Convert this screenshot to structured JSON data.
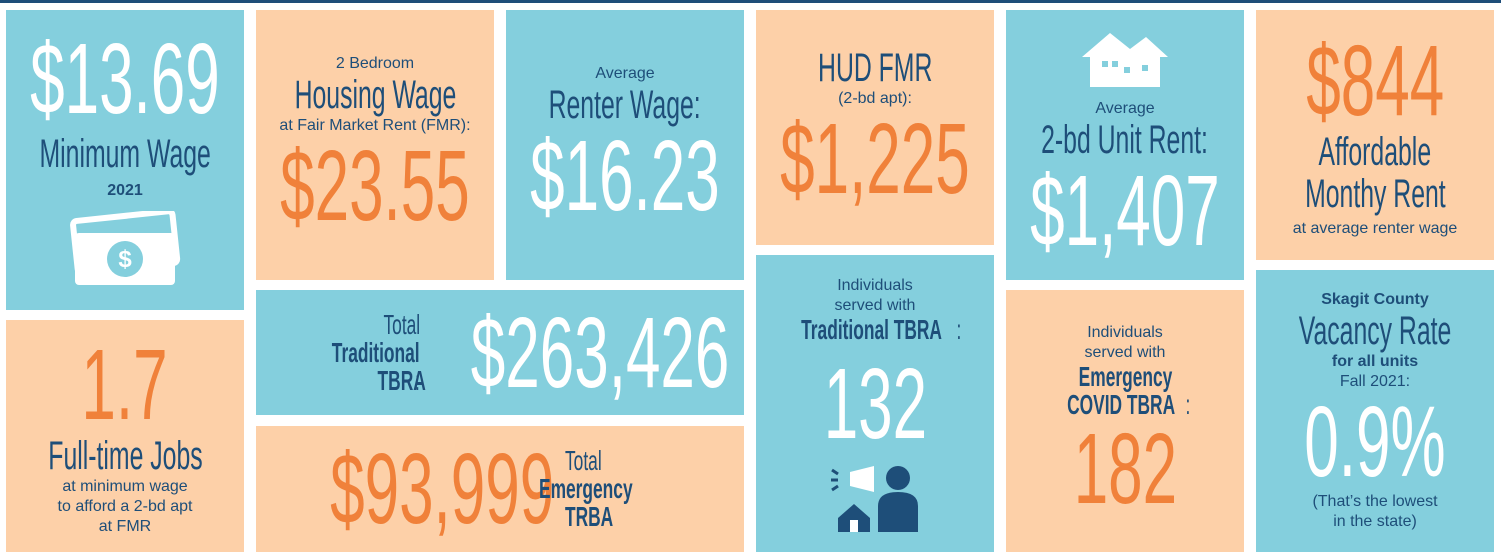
{
  "minimum_wage": {
    "value": "$13.69",
    "label": "Minimum Wage",
    "year": "2021"
  },
  "jobs": {
    "value": "1.7",
    "label": "Full-time Jobs",
    "note": [
      "at minimum wage",
      "to afford a 2-bd apt",
      "at FMR"
    ]
  },
  "housing_wage": {
    "pre": "2 Bedroom",
    "label": "Housing Wage",
    "note": "at Fair Market Rent (FMR):",
    "value": "$23.55"
  },
  "renter_wage": {
    "pre": "Average",
    "label": "Renter Wage:",
    "value": "$16.23"
  },
  "traditional_total": {
    "parts": [
      "Total",
      "Traditional",
      "TBRA",
      ":"
    ],
    "value": "$263,426"
  },
  "emergency_total": {
    "value": "$93,999",
    "parts": [
      "Total",
      "Emergency",
      "TRBA"
    ]
  },
  "hud_fmr": {
    "label": "HUD FMR",
    "note": "(2-bd apt):",
    "value": "$1,225"
  },
  "traditional_served": {
    "pre": [
      "Individuals",
      "served with"
    ],
    "label": "Traditional TBRA",
    "colon": ":",
    "value": "132"
  },
  "avg_rent": {
    "pre": "Average",
    "label": "2-bd Unit Rent:",
    "value": "$1,407"
  },
  "emergency_served": {
    "pre": [
      "Individuals",
      "served with"
    ],
    "label": [
      "Emergency",
      "COVID TBRA"
    ],
    "colon": ":",
    "value": "182"
  },
  "affordable_rent": {
    "value": "$844",
    "label": [
      "Affordable",
      "Monthy Rent"
    ],
    "note": "at average renter wage"
  },
  "vacancy": {
    "region": "Skagit County",
    "label": "Vacancy Rate",
    "scope": "for all units",
    "period": "Fall 2021:",
    "value": "0.9%",
    "note": [
      "(That’s the lowest",
      "in the state)"
    ]
  }
}
